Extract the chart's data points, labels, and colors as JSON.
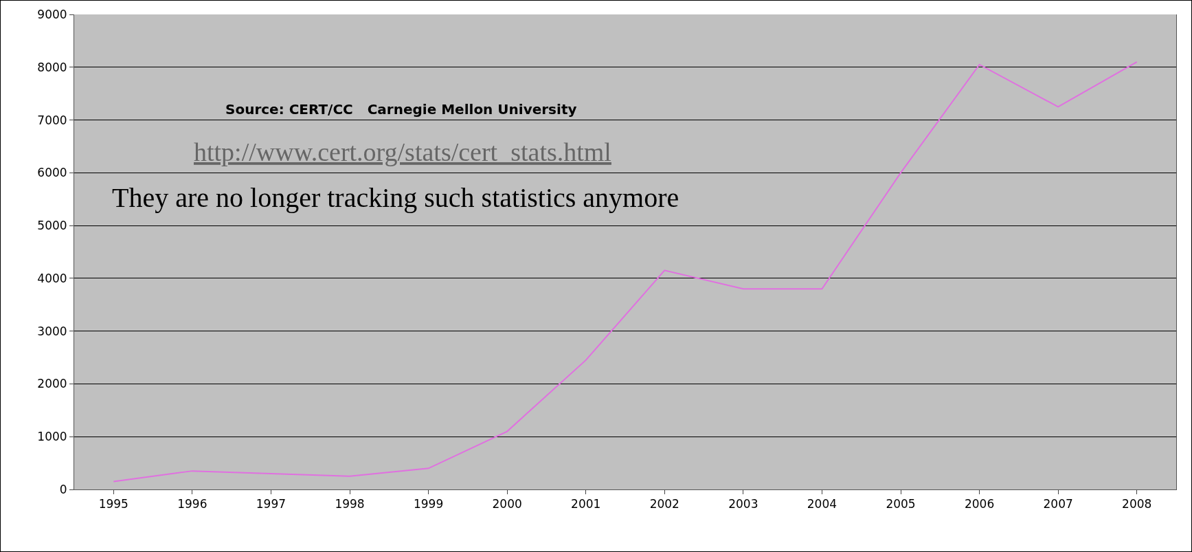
{
  "chart_data": {
    "type": "line",
    "categories": [
      "1995",
      "1996",
      "1997",
      "1998",
      "1999",
      "2000",
      "2001",
      "2002",
      "2003",
      "2004",
      "2005",
      "2006",
      "2007",
      "2008"
    ],
    "values": [
      150,
      350,
      300,
      250,
      400,
      1100,
      2450,
      4150,
      3800,
      3800,
      6000,
      8050,
      7250,
      8100
    ],
    "color": "#e070e0",
    "ylim": [
      0,
      9000
    ],
    "yticks": [
      0,
      1000,
      2000,
      3000,
      4000,
      5000,
      6000,
      7000,
      8000,
      9000
    ],
    "grid": "y",
    "annotations": [
      "Source: CERT/CC   Carnegie Mellon University",
      "http://www.cert.org/stats/cert_stats.html",
      "They are no longer tracking such statistics anymore"
    ]
  }
}
